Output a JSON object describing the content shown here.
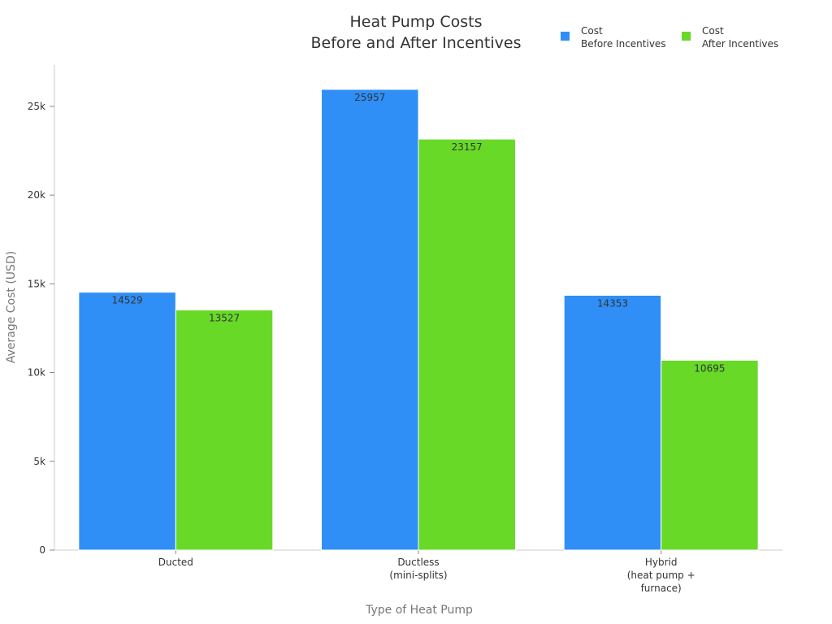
{
  "chart_data": {
    "type": "bar",
    "title": "Heat Pump Costs\nBefore and After Incentives",
    "x_label": "Type of Heat Pump",
    "y_label": "Average Cost (USD)",
    "categories": [
      "Ducted",
      "Ductless\n(mini-splits)",
      "Hybrid\n(heat pump +\nfurnace)"
    ],
    "series": [
      {
        "name": "Cost\nBefore Incentives",
        "color": "#2f8ff7",
        "values": [
          14529,
          25957,
          14353
        ]
      },
      {
        "name": "Cost\nAfter Incentives",
        "color": "#67d926",
        "values": [
          13527,
          23157,
          10695
        ]
      }
    ],
    "ylim": [
      0,
      27330
    ],
    "yticks": [
      0,
      {
        "value": 5000,
        "label": "5k"
      },
      {
        "value": 10000,
        "label": "10k"
      },
      {
        "value": 15000,
        "label": "15k"
      },
      {
        "value": 20000,
        "label": "20k"
      },
      {
        "value": 25000,
        "label": "25k"
      }
    ],
    "legend": "top-right"
  }
}
